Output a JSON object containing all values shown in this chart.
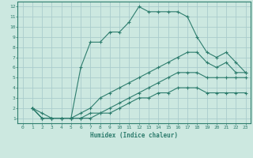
{
  "xlabel": "Humidex (Indice chaleur)",
  "bg_color": "#cce8e0",
  "grid_color": "#aacccc",
  "line_color": "#2e7d6e",
  "xlim": [
    -0.5,
    23.5
  ],
  "ylim": [
    0.5,
    12.5
  ],
  "xticks": [
    0,
    1,
    2,
    3,
    4,
    5,
    6,
    7,
    8,
    9,
    10,
    11,
    12,
    13,
    14,
    15,
    16,
    17,
    18,
    19,
    20,
    21,
    22,
    23
  ],
  "yticks": [
    1,
    2,
    3,
    4,
    5,
    6,
    7,
    8,
    9,
    10,
    11,
    12
  ],
  "lines": [
    {
      "x": [
        1,
        2,
        3,
        4,
        5,
        6,
        7,
        8,
        9,
        10,
        11,
        12,
        13,
        14,
        15,
        16,
        17,
        18,
        19,
        20,
        21,
        22,
        23
      ],
      "y": [
        2,
        1.5,
        1,
        1,
        1,
        6,
        8.5,
        8.5,
        9.5,
        9.5,
        10.5,
        12,
        11.5,
        11.5,
        11.5,
        11.5,
        11,
        9,
        7.5,
        7,
        7.5,
        6.5,
        5.5
      ]
    },
    {
      "x": [
        1,
        2,
        3,
        4,
        5,
        6,
        7,
        8,
        9,
        10,
        11,
        12,
        13,
        14,
        15,
        16,
        17,
        18,
        19,
        20,
        21,
        22,
        23
      ],
      "y": [
        2,
        1,
        1,
        1,
        1,
        1.5,
        2,
        3,
        3.5,
        4,
        4.5,
        5,
        5.5,
        6,
        6.5,
        7,
        7.5,
        7.5,
        6.5,
        6,
        6.5,
        5.5,
        5.5
      ]
    },
    {
      "x": [
        1,
        2,
        3,
        4,
        5,
        6,
        7,
        8,
        9,
        10,
        11,
        12,
        13,
        14,
        15,
        16,
        17,
        18,
        19,
        20,
        21,
        22,
        23
      ],
      "y": [
        2,
        1,
        1,
        1,
        1,
        1,
        1.5,
        1.5,
        2,
        2.5,
        3,
        3.5,
        4,
        4.5,
        5,
        5.5,
        5.5,
        5.5,
        5,
        5,
        5,
        5,
        5
      ]
    },
    {
      "x": [
        1,
        2,
        3,
        4,
        5,
        6,
        7,
        8,
        9,
        10,
        11,
        12,
        13,
        14,
        15,
        16,
        17,
        18,
        19,
        20,
        21,
        22,
        23
      ],
      "y": [
        2,
        1,
        1,
        1,
        1,
        1,
        1,
        1.5,
        1.5,
        2,
        2.5,
        3,
        3,
        3.5,
        3.5,
        4,
        4,
        4,
        3.5,
        3.5,
        3.5,
        3.5,
        3.5
      ]
    }
  ]
}
